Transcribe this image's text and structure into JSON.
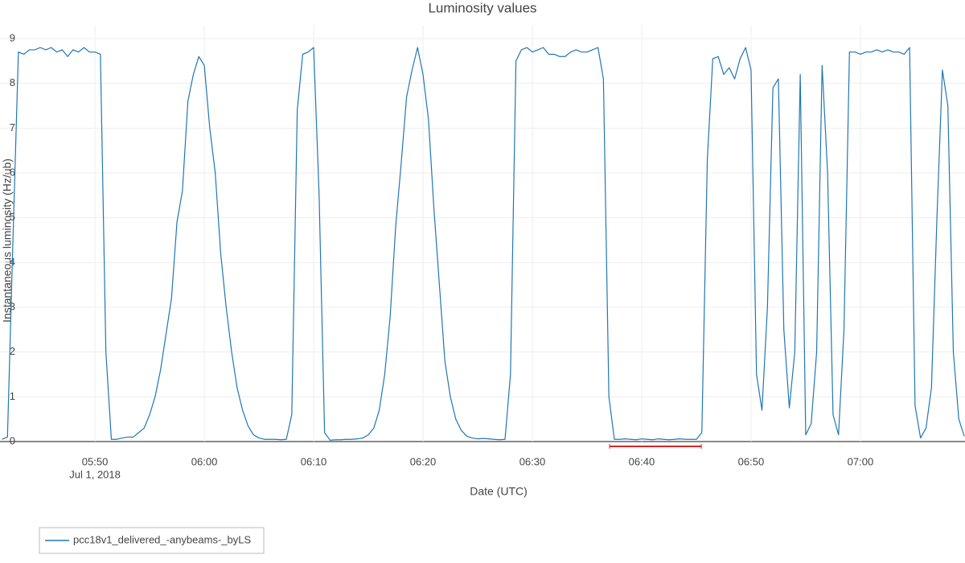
{
  "chart_data": {
    "type": "line",
    "title": "Luminosity values",
    "x_label": "Date (UTC)",
    "y_label": "Instantaneous luminosity (Hz/ub)",
    "x": [
      "05:41:30",
      "05:42:00",
      "05:42:30",
      "05:43:00",
      "05:43:30",
      "05:44:00",
      "05:44:30",
      "05:45:00",
      "05:45:30",
      "05:46:00",
      "05:46:30",
      "05:47:00",
      "05:47:30",
      "05:48:00",
      "05:48:30",
      "05:49:00",
      "05:49:30",
      "05:50:00",
      "05:50:30",
      "05:51:00",
      "05:51:30",
      "05:52:00",
      "05:52:30",
      "05:53:00",
      "05:53:30",
      "05:54:00",
      "05:54:30",
      "05:55:00",
      "05:55:30",
      "05:56:00",
      "05:56:30",
      "05:57:00",
      "05:57:30",
      "05:58:00",
      "05:58:30",
      "05:59:00",
      "05:59:30",
      "06:00:00",
      "06:00:30",
      "06:01:00",
      "06:01:30",
      "06:02:00",
      "06:02:30",
      "06:03:00",
      "06:03:30",
      "06:04:00",
      "06:04:30",
      "06:05:00",
      "06:05:30",
      "06:06:00",
      "06:06:30",
      "06:07:00",
      "06:07:30",
      "06:08:00",
      "06:08:30",
      "06:09:00",
      "06:09:30",
      "06:10:00",
      "06:10:30",
      "06:11:00",
      "06:11:30",
      "06:12:00",
      "06:12:30",
      "06:13:00",
      "06:13:30",
      "06:14:00",
      "06:14:30",
      "06:15:00",
      "06:15:30",
      "06:16:00",
      "06:16:30",
      "06:17:00",
      "06:17:30",
      "06:18:00",
      "06:18:30",
      "06:19:00",
      "06:19:30",
      "06:20:00",
      "06:20:30",
      "06:21:00",
      "06:21:30",
      "06:22:00",
      "06:22:30",
      "06:23:00",
      "06:23:30",
      "06:24:00",
      "06:24:30",
      "06:25:00",
      "06:25:30",
      "06:26:00",
      "06:26:30",
      "06:27:00",
      "06:27:30",
      "06:28:00",
      "06:28:30",
      "06:29:00",
      "06:29:30",
      "06:30:00",
      "06:30:30",
      "06:31:00",
      "06:31:30",
      "06:32:00",
      "06:32:30",
      "06:33:00",
      "06:33:30",
      "06:34:00",
      "06:34:30",
      "06:35:00",
      "06:35:30",
      "06:36:00",
      "06:36:30",
      "06:37:00",
      "06:37:30",
      "06:38:00",
      "06:38:30",
      "06:39:00",
      "06:39:30",
      "06:40:00",
      "06:40:30",
      "06:41:00",
      "06:41:30",
      "06:42:00",
      "06:42:30",
      "06:43:00",
      "06:43:30",
      "06:44:00",
      "06:44:30",
      "06:45:00",
      "06:45:30",
      "06:46:00",
      "06:46:30",
      "06:47:00",
      "06:47:30",
      "06:48:00",
      "06:48:30",
      "06:49:00",
      "06:49:30",
      "06:50:00",
      "06:50:30",
      "06:51:00",
      "06:51:30",
      "06:52:00",
      "06:52:30",
      "06:53:00",
      "06:53:30",
      "06:54:00",
      "06:54:30",
      "06:55:00",
      "06:55:30",
      "06:56:00",
      "06:56:30",
      "06:57:00",
      "06:57:30",
      "06:58:00",
      "06:58:30",
      "06:59:00",
      "06:59:30",
      "07:00:00",
      "07:00:30",
      "07:01:00",
      "07:01:30",
      "07:02:00",
      "07:02:30",
      "07:03:00",
      "07:03:30",
      "07:04:00",
      "07:04:30",
      "07:05:00",
      "07:05:30",
      "07:06:00",
      "07:06:30",
      "07:07:00",
      "07:07:30",
      "07:08:00",
      "07:08:30",
      "07:09:00",
      "07:09:30"
    ],
    "series": [
      {
        "name": "pcc18v1_delivered_-anybeams-_byLS",
        "color": "#1f77b4",
        "values": [
          0.05,
          0.1,
          4.5,
          8.7,
          8.65,
          8.75,
          8.75,
          8.8,
          8.75,
          8.8,
          8.7,
          8.75,
          8.6,
          8.75,
          8.7,
          8.8,
          8.7,
          8.7,
          8.65,
          2,
          0.05,
          0.05,
          0.08,
          0.1,
          0.1,
          0.2,
          0.3,
          0.6,
          1.0,
          1.6,
          2.4,
          3.2,
          4.9,
          5.6,
          7.6,
          8.2,
          8.6,
          8.4,
          7.0,
          6.0,
          4.2,
          3.0,
          2.0,
          1.2,
          0.7,
          0.35,
          0.15,
          0.08,
          0.05,
          0.05,
          0.05,
          0.04,
          0.05,
          0.6,
          7.4,
          8.65,
          8.7,
          8.8,
          5.5,
          0.2,
          0.03,
          0.04,
          0.04,
          0.05,
          0.05,
          0.06,
          0.08,
          0.15,
          0.3,
          0.7,
          1.5,
          2.8,
          4.8,
          6.2,
          7.7,
          8.3,
          8.8,
          8.2,
          7.2,
          5.2,
          3.5,
          1.8,
          1.0,
          0.5,
          0.25,
          0.12,
          0.08,
          0.06,
          0.07,
          0.06,
          0.05,
          0.04,
          0.05,
          1.5,
          8.5,
          8.75,
          8.8,
          8.7,
          8.75,
          8.8,
          8.65,
          8.65,
          8.6,
          8.6,
          8.7,
          8.75,
          8.7,
          8.7,
          8.75,
          8.8,
          8.1,
          1.0,
          0.05,
          0.05,
          0.06,
          0.05,
          0.04,
          0.06,
          0.05,
          0.04,
          0.06,
          0.05,
          0.04,
          0.05,
          0.06,
          0.05,
          0.05,
          0.05,
          0.2,
          6.3,
          8.55,
          8.6,
          8.2,
          8.35,
          8.1,
          8.55,
          8.8,
          8.3,
          1.5,
          0.7,
          3,
          7.9,
          8.1,
          2.5,
          0.75,
          2,
          8.2,
          0.15,
          0.4,
          2,
          8.4,
          6,
          0.6,
          0.15,
          2.5,
          8.7,
          8.7,
          8.65,
          8.7,
          8.7,
          8.75,
          8.7,
          8.75,
          8.7,
          8.7,
          8.65,
          8.8,
          0.8,
          0.08,
          0.3,
          1.2,
          5,
          8.3,
          7.5,
          2,
          0.5,
          0.12
        ]
      }
    ],
    "xlim": [
      "05:41:19",
      "07:09:34"
    ],
    "xticks": [
      {
        "value": "05:50:00",
        "label": "05:50",
        "sublabel": "Jul 1, 2018"
      },
      {
        "value": "06:00:00",
        "label": "06:00"
      },
      {
        "value": "06:10:00",
        "label": "06:10"
      },
      {
        "value": "06:20:00",
        "label": "06:20"
      },
      {
        "value": "06:30:00",
        "label": "06:30"
      },
      {
        "value": "06:40:00",
        "label": "06:40"
      },
      {
        "value": "06:50:00",
        "label": "06:50"
      },
      {
        "value": "07:00:00",
        "label": "07:00"
      }
    ],
    "ylim": [
      0,
      9.3
    ],
    "yticks": [
      0,
      1,
      2,
      3,
      4,
      5,
      6,
      7,
      8,
      9
    ],
    "grid": true,
    "highlight": {
      "x": [
        "06:37:04",
        "06:45:27"
      ],
      "color": "#d62728"
    },
    "legend": "bottom-left"
  }
}
